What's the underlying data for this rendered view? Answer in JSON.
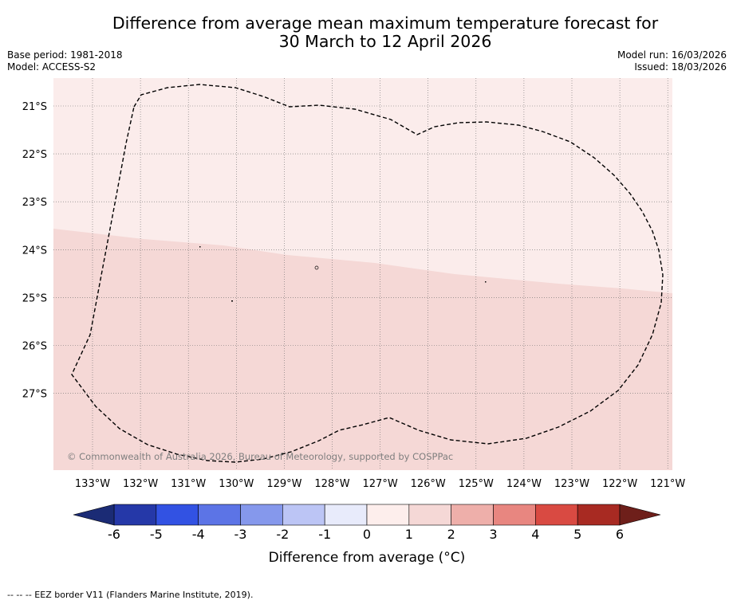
{
  "title": {
    "line1": "Difference from average mean maximum temperature forecast for",
    "line2": "30 March to 12 April 2026"
  },
  "meta_left": {
    "base_period": "Base period: 1981-2018",
    "model": "Model: ACCESS-S2"
  },
  "meta_right": {
    "model_run": "Model run: 16/03/2026",
    "issued": "Issued: 18/03/2026"
  },
  "map": {
    "copyright": "© Commonwealth of Australia 2026, Bureau of Meteorology, supported by COSPPac",
    "lon_labels": [
      "133°W",
      "132°W",
      "131°W",
      "130°W",
      "129°W",
      "128°W",
      "127°W",
      "126°W",
      "125°W",
      "124°W",
      "123°W",
      "122°W",
      "121°W"
    ],
    "lat_labels": [
      "21°S",
      "22°S",
      "23°S",
      "24°S",
      "25°S",
      "26°S",
      "27°S"
    ],
    "categories": [
      {
        "range": "0 to 1",
        "color": "#fbeceb"
      },
      {
        "range": "1 to 2",
        "color": "#f5d8d6"
      }
    ]
  },
  "colorbar": {
    "label": "Difference from average (°C)",
    "ticks": [
      "-6",
      "-5",
      "-4",
      "-3",
      "-2",
      "-1",
      "0",
      "1",
      "2",
      "3",
      "4",
      "5",
      "6"
    ],
    "colors": [
      "#2538a8",
      "#3252e3",
      "#5c74e6",
      "#8598ec",
      "#bcc5f5",
      "#e8ebfb",
      "#fdeeec",
      "#f5d8d6",
      "#eeafaa",
      "#e88680",
      "#d94a42",
      "#a82a22"
    ],
    "low_color": "#1b2b75",
    "high_color": "#6e1f1a"
  },
  "footer": {
    "legend": "-- -- -- EEZ border V11 (Flanders Marine Institute, 2019)."
  }
}
